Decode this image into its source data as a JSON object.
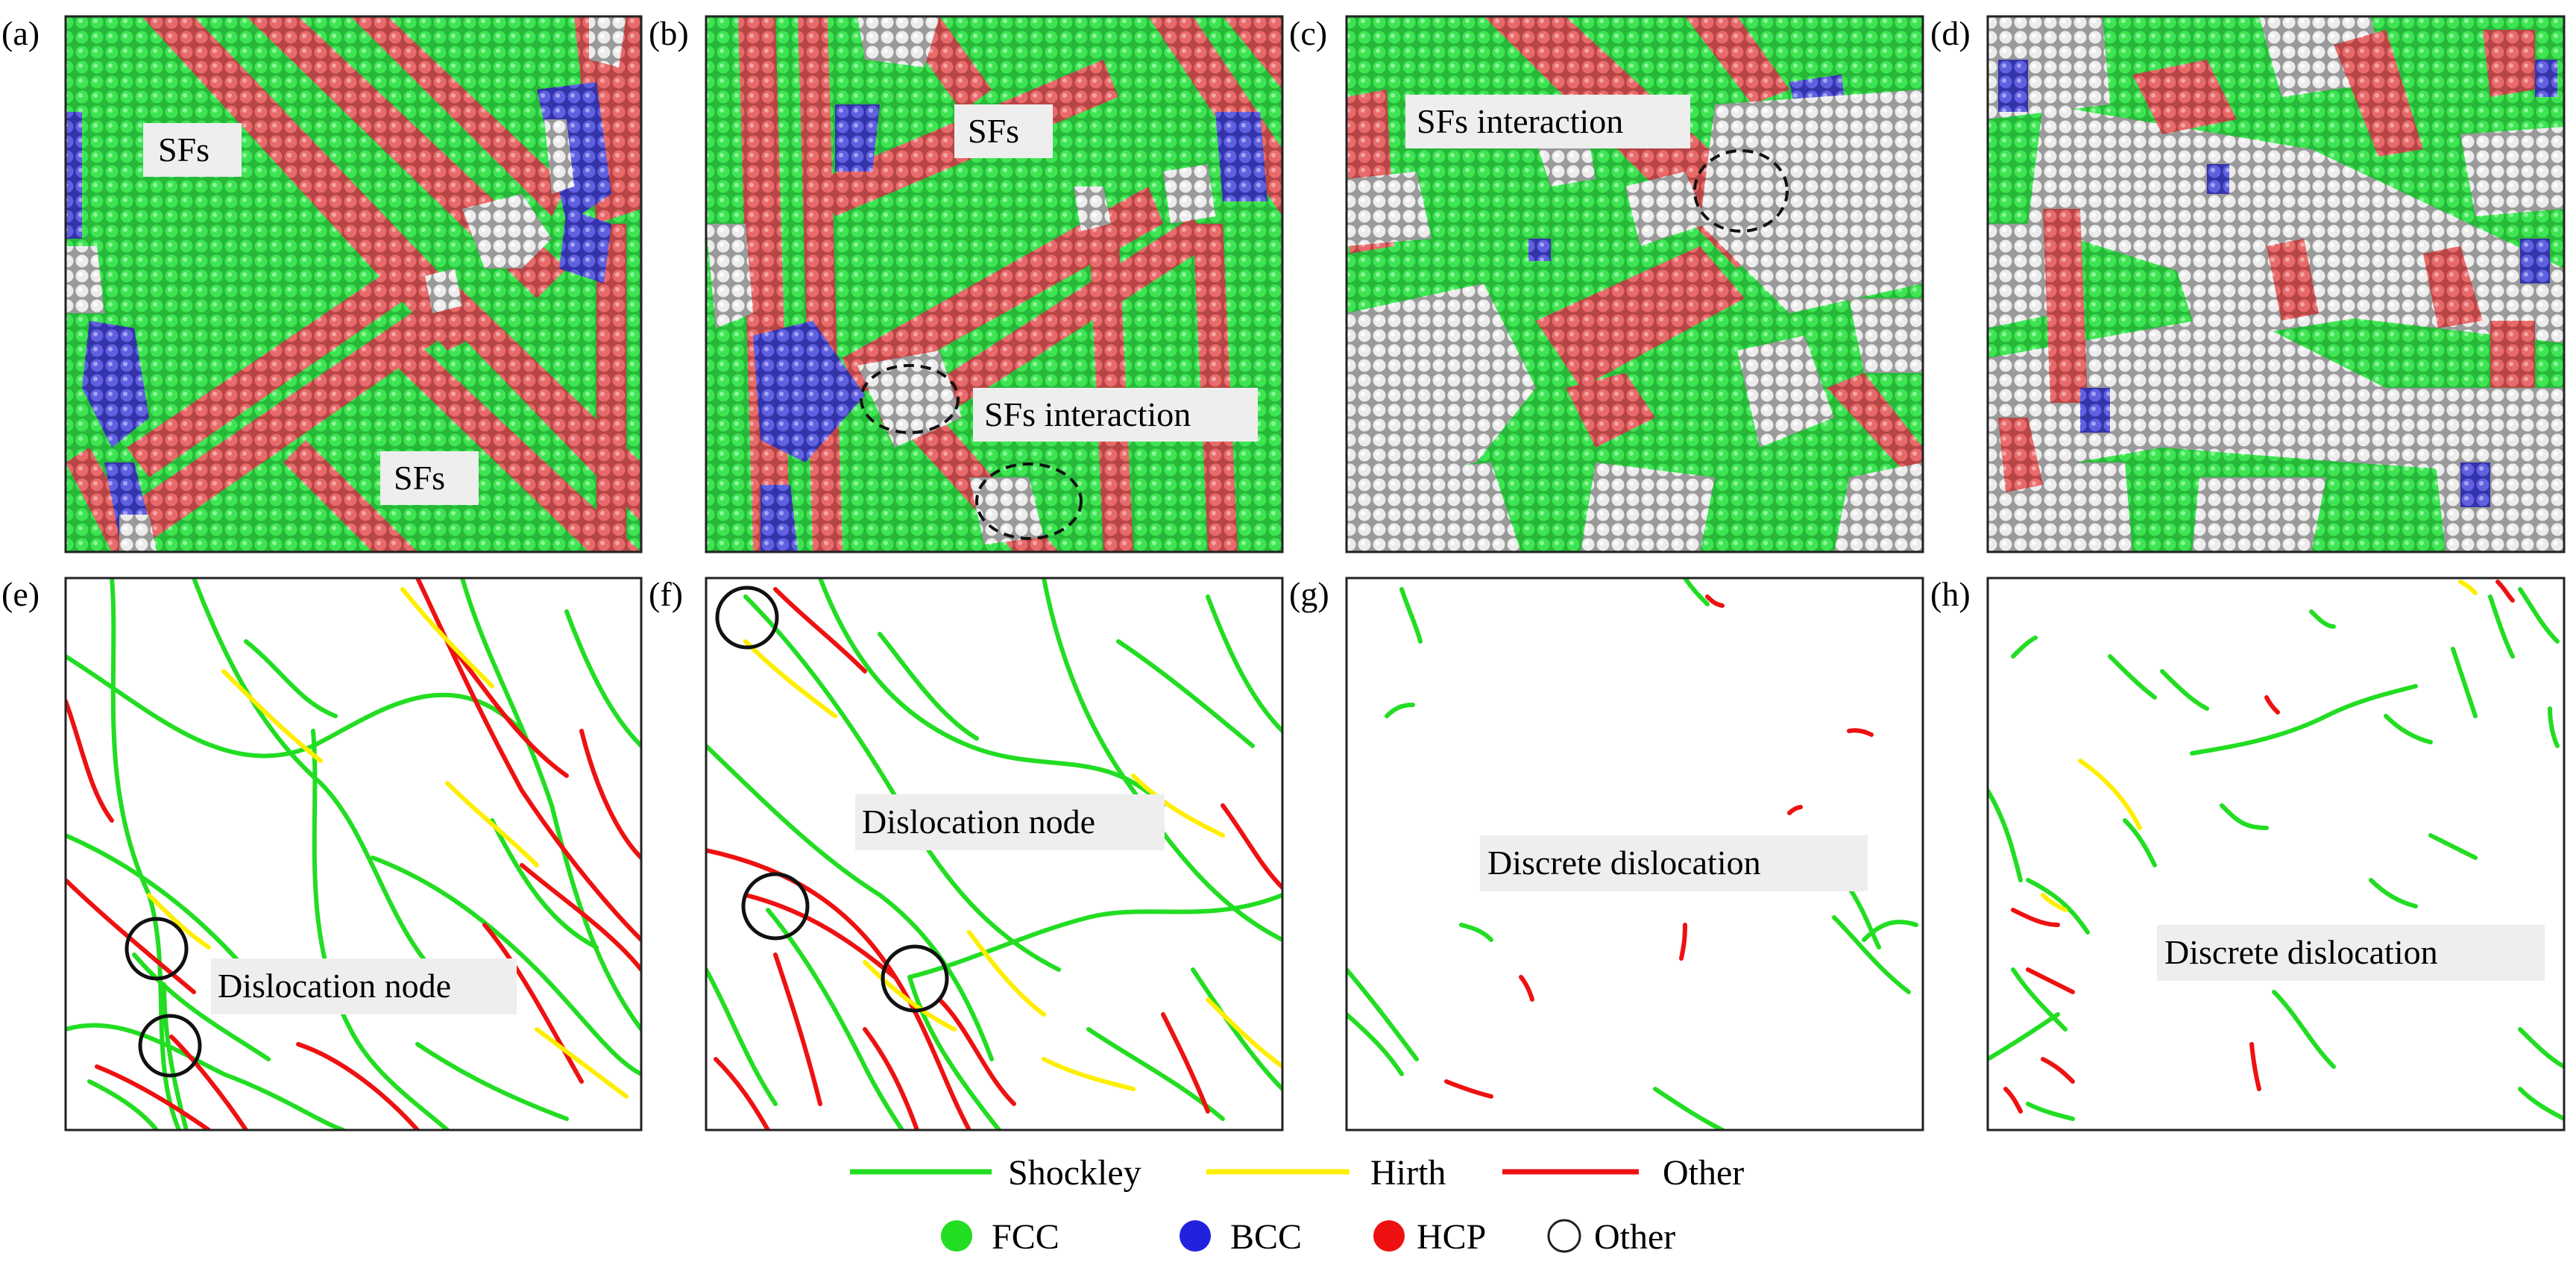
{
  "panels": [
    {
      "id": "a",
      "label": "(a)",
      "kind": "atoms",
      "annotations": [
        "SFs",
        "SFs"
      ]
    },
    {
      "id": "b",
      "label": "(b)",
      "kind": "atoms",
      "annotations": [
        "SFs",
        "SFs interaction"
      ]
    },
    {
      "id": "c",
      "label": "(c)",
      "kind": "atoms",
      "annotations": [
        "SFs interaction"
      ]
    },
    {
      "id": "d",
      "label": "(d)",
      "kind": "atoms",
      "annotations": []
    },
    {
      "id": "e",
      "label": "(e)",
      "kind": "dislocations",
      "annotations": [
        "Dislocation node"
      ]
    },
    {
      "id": "f",
      "label": "(f)",
      "kind": "dislocations",
      "annotations": [
        "Dislocation node"
      ]
    },
    {
      "id": "g",
      "label": "(g)",
      "kind": "dislocations",
      "annotations": [
        "Discrete dislocation"
      ]
    },
    {
      "id": "h",
      "label": "(h)",
      "kind": "dislocations",
      "annotations": [
        "Discrete dislocation"
      ]
    }
  ],
  "legend_lines": [
    {
      "label": "Shockley",
      "color": "#22dd22"
    },
    {
      "label": "Hirth",
      "color": "#ffee00"
    },
    {
      "label": "Other",
      "color": "#ee1111"
    }
  ],
  "legend_atoms": [
    {
      "label": "FCC",
      "color": "#22dd22"
    },
    {
      "label": "BCC",
      "color": "#2222dd"
    },
    {
      "label": "HCP",
      "color": "#ee1111"
    },
    {
      "label": "Other",
      "color": "#ffffff"
    }
  ],
  "colors": {
    "fcc": "#33dd44",
    "bcc": "#5555dd",
    "hcp": "#e06060",
    "other_atom": "#eeeeee",
    "shockley": "#22dd22",
    "hirth": "#ffee00",
    "other_dislocation": "#ee1111"
  }
}
